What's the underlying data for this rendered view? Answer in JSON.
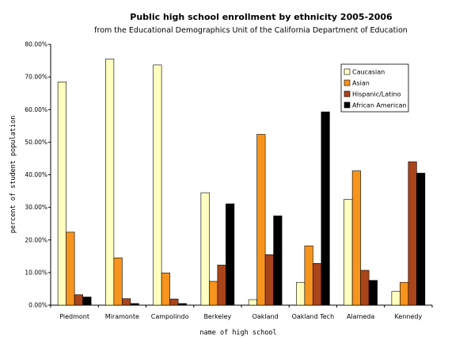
{
  "chart_data": {
    "type": "bar",
    "title": "Public high school enrollment by ethnicity 2005-2006",
    "subtitle": "from the Educational Demographics Unit of the California Department of Education",
    "xlabel": "name of high school",
    "ylabel": "percent of student population",
    "ylim": [
      0,
      80
    ],
    "y_tick_labels": [
      "0.00%",
      "10.00%",
      "20.00%",
      "30.00%",
      "40.00%",
      "50.00%",
      "60.00%",
      "70.00%",
      "80.00%"
    ],
    "grid": false,
    "legend_position": "top-right",
    "categories": [
      "Piedmont",
      "Miramonte",
      "Campolindo",
      "Berkeley",
      "Oakland",
      "Oakland Tech",
      "Alameda",
      "Kennedy"
    ],
    "series": [
      {
        "name": "Caucasian",
        "color": "#ffffc0",
        "values": [
          68.5,
          75.5,
          73.7,
          34.5,
          1.7,
          7.0,
          32.5,
          4.2
        ]
      },
      {
        "name": "Asian",
        "color": "#f7941d",
        "values": [
          22.4,
          14.5,
          9.9,
          7.3,
          52.4,
          18.2,
          41.2,
          7.0
        ]
      },
      {
        "name": "Hispanic/Latino",
        "color": "#a9441b",
        "values": [
          3.2,
          2.0,
          1.9,
          12.3,
          15.5,
          12.8,
          10.7,
          44.0
        ]
      },
      {
        "name": "African American",
        "color": "#000000",
        "values": [
          2.5,
          0.5,
          0.5,
          31.1,
          27.4,
          59.3,
          7.6,
          40.5
        ]
      }
    ]
  }
}
